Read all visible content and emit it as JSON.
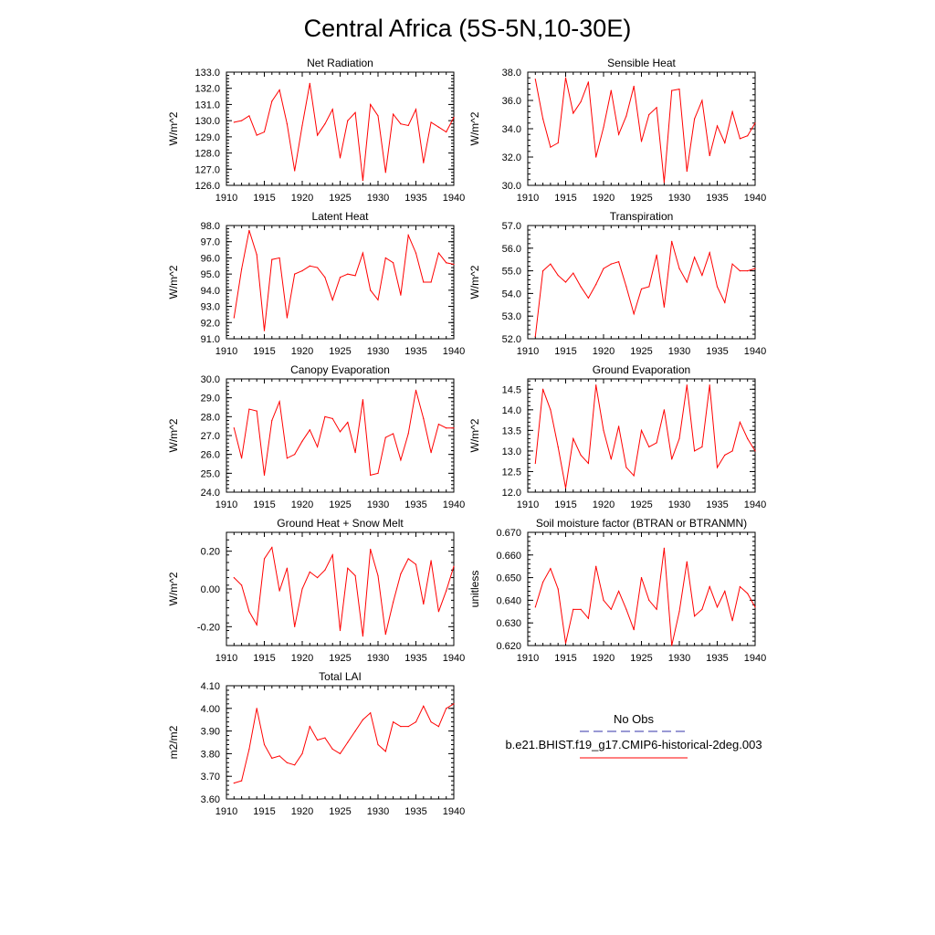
{
  "figure": {
    "title": "Central Africa (5S-5N,10-30E)"
  },
  "legend": {
    "obs_label": "No Obs",
    "obs_color": "#3333aa",
    "model_label": "b.e21.BHIST.f19_g17.CMIP6-historical-2deg.003",
    "model_color": "#ff0000"
  },
  "chart_data": [
    {
      "type": "line",
      "title": "Net Radiation",
      "ylabel": "W/m^2",
      "xlim": [
        1910,
        1940
      ],
      "xticks": [
        "1910",
        "1915",
        "1920",
        "1925",
        "1930",
        "1935",
        "1940"
      ],
      "ylim": [
        126.0,
        133.0
      ],
      "yticks": [
        "126.0",
        "127.0",
        "128.0",
        "129.0",
        "130.0",
        "131.0",
        "132.0",
        "133.0"
      ],
      "x": [
        1911,
        1912,
        1913,
        1914,
        1915,
        1916,
        1917,
        1918,
        1919,
        1920,
        1921,
        1922,
        1923,
        1924,
        1925,
        1926,
        1927,
        1928,
        1929,
        1930,
        1931,
        1932,
        1933,
        1934,
        1935,
        1936,
        1937,
        1938,
        1939,
        1940
      ],
      "series": [
        {
          "values": [
            129.9,
            130.0,
            130.3,
            129.1,
            129.3,
            131.2,
            131.9,
            129.8,
            126.9,
            129.7,
            132.3,
            129.1,
            129.8,
            130.7,
            127.7,
            130.0,
            130.5,
            126.3,
            131.0,
            130.3,
            126.8,
            130.4,
            129.8,
            129.7,
            130.7,
            127.4,
            129.9,
            129.6,
            129.3,
            130.2
          ]
        }
      ]
    },
    {
      "type": "line",
      "title": "Sensible Heat",
      "ylabel": "W/m^2",
      "xlim": [
        1910,
        1940
      ],
      "xticks": [
        "1910",
        "1915",
        "1920",
        "1925",
        "1930",
        "1935",
        "1940"
      ],
      "ylim": [
        30.0,
        38.0
      ],
      "yticks": [
        "30.0",
        "32.0",
        "34.0",
        "36.0",
        "38.0"
      ],
      "x": [
        1911,
        1912,
        1913,
        1914,
        1915,
        1916,
        1917,
        1918,
        1919,
        1920,
        1921,
        1922,
        1923,
        1924,
        1925,
        1926,
        1927,
        1928,
        1929,
        1930,
        1931,
        1932,
        1933,
        1934,
        1935,
        1936,
        1937,
        1938,
        1939,
        1940
      ],
      "series": [
        {
          "values": [
            37.5,
            34.7,
            32.7,
            33.0,
            37.6,
            35.1,
            35.9,
            37.3,
            32.0,
            34.1,
            36.7,
            33.6,
            34.9,
            37.0,
            33.1,
            35.0,
            35.5,
            30.2,
            36.7,
            36.8,
            31.0,
            34.7,
            36.0,
            32.1,
            34.2,
            33.0,
            35.2,
            33.3,
            33.5,
            34.4
          ]
        }
      ]
    },
    {
      "type": "line",
      "title": "Latent Heat",
      "ylabel": "W/m^2",
      "xlim": [
        1910,
        1940
      ],
      "xticks": [
        "1910",
        "1915",
        "1920",
        "1925",
        "1930",
        "1935",
        "1940"
      ],
      "ylim": [
        91.0,
        98.0
      ],
      "yticks": [
        "91.0",
        "92.0",
        "93.0",
        "94.0",
        "95.0",
        "96.0",
        "97.0",
        "98.0"
      ],
      "x": [
        1911,
        1912,
        1913,
        1914,
        1915,
        1916,
        1917,
        1918,
        1919,
        1920,
        1921,
        1922,
        1923,
        1924,
        1925,
        1926,
        1927,
        1928,
        1929,
        1930,
        1931,
        1932,
        1933,
        1934,
        1935,
        1936,
        1937,
        1938,
        1939,
        1940
      ],
      "series": [
        {
          "values": [
            92.3,
            95.3,
            97.7,
            96.2,
            91.5,
            95.9,
            96.0,
            92.3,
            95.0,
            95.2,
            95.5,
            95.4,
            94.8,
            93.4,
            94.8,
            95.0,
            94.9,
            96.3,
            94.0,
            93.4,
            96.0,
            95.7,
            93.7,
            97.4,
            96.3,
            94.5,
            94.5,
            96.3,
            95.7,
            95.6
          ]
        }
      ]
    },
    {
      "type": "line",
      "title": "Transpiration",
      "ylabel": "W/m^2",
      "xlim": [
        1910,
        1940
      ],
      "xticks": [
        "1910",
        "1915",
        "1920",
        "1925",
        "1930",
        "1935",
        "1940"
      ],
      "ylim": [
        52.0,
        57.0
      ],
      "yticks": [
        "52.0",
        "53.0",
        "54.0",
        "55.0",
        "56.0",
        "57.0"
      ],
      "x": [
        1911,
        1912,
        1913,
        1914,
        1915,
        1916,
        1917,
        1918,
        1919,
        1920,
        1921,
        1922,
        1923,
        1924,
        1925,
        1926,
        1927,
        1928,
        1929,
        1930,
        1931,
        1932,
        1933,
        1934,
        1935,
        1936,
        1937,
        1938,
        1939,
        1940
      ],
      "series": [
        {
          "values": [
            52.1,
            55.0,
            55.3,
            54.8,
            54.5,
            54.9,
            54.3,
            53.8,
            54.4,
            55.1,
            55.3,
            55.4,
            54.3,
            53.1,
            54.2,
            54.3,
            55.7,
            53.4,
            56.3,
            55.1,
            54.5,
            55.6,
            54.8,
            55.8,
            54.3,
            53.6,
            55.3,
            55.0,
            55.0,
            55.1
          ]
        }
      ]
    },
    {
      "type": "line",
      "title": "Canopy Evaporation",
      "ylabel": "W/m^2",
      "xlim": [
        1910,
        1940
      ],
      "xticks": [
        "1910",
        "1915",
        "1920",
        "1925",
        "1930",
        "1935",
        "1940"
      ],
      "ylim": [
        24.0,
        30.0
      ],
      "yticks": [
        "24.0",
        "25.0",
        "26.0",
        "27.0",
        "28.0",
        "29.0",
        "30.0"
      ],
      "x": [
        1911,
        1912,
        1913,
        1914,
        1915,
        1916,
        1917,
        1918,
        1919,
        1920,
        1921,
        1922,
        1923,
        1924,
        1925,
        1926,
        1927,
        1928,
        1929,
        1930,
        1931,
        1932,
        1933,
        1934,
        1935,
        1936,
        1937,
        1938,
        1939,
        1940
      ],
      "series": [
        {
          "values": [
            27.4,
            25.8,
            28.4,
            28.3,
            24.9,
            27.8,
            28.8,
            25.8,
            26.0,
            26.7,
            27.3,
            26.4,
            28.0,
            27.9,
            27.2,
            27.7,
            26.1,
            28.9,
            24.9,
            25.0,
            26.9,
            27.1,
            25.7,
            27.1,
            29.4,
            27.9,
            26.1,
            27.6,
            27.4,
            27.4
          ]
        }
      ]
    },
    {
      "type": "line",
      "title": "Ground Evaporation",
      "ylabel": "W/m^2",
      "xlim": [
        1910,
        1940
      ],
      "xticks": [
        "1910",
        "1915",
        "1920",
        "1925",
        "1930",
        "1935",
        "1940"
      ],
      "ylim": [
        12.0,
        14.75
      ],
      "yticks": [
        "12.0",
        "12.5",
        "13.0",
        "13.5",
        "14.0",
        "14.5"
      ],
      "x": [
        1911,
        1912,
        1913,
        1914,
        1915,
        1916,
        1917,
        1918,
        1919,
        1920,
        1921,
        1922,
        1923,
        1924,
        1925,
        1926,
        1927,
        1928,
        1929,
        1930,
        1931,
        1932,
        1933,
        1934,
        1935,
        1936,
        1937,
        1938,
        1939,
        1940
      ],
      "series": [
        {
          "values": [
            12.7,
            14.5,
            14.0,
            13.1,
            12.1,
            13.3,
            12.9,
            12.7,
            14.6,
            13.5,
            12.8,
            13.6,
            12.6,
            12.4,
            13.5,
            13.1,
            13.2,
            14.0,
            12.8,
            13.3,
            14.6,
            13.0,
            13.1,
            14.6,
            12.6,
            12.9,
            13.0,
            13.7,
            13.3,
            13.0
          ]
        }
      ]
    },
    {
      "type": "line",
      "title": "Ground Heat + Snow Melt",
      "ylabel": "W/m^2",
      "xlim": [
        1910,
        1940
      ],
      "xticks": [
        "1910",
        "1915",
        "1920",
        "1925",
        "1930",
        "1935",
        "1940"
      ],
      "ylim": [
        -0.3,
        0.3
      ],
      "yticks": [
        "-0.20",
        "0.00",
        "0.20"
      ],
      "ytickvals": [
        -0.2,
        0.0,
        0.2
      ],
      "x": [
        1911,
        1912,
        1913,
        1914,
        1915,
        1916,
        1917,
        1918,
        1919,
        1920,
        1921,
        1922,
        1923,
        1924,
        1925,
        1926,
        1927,
        1928,
        1929,
        1930,
        1931,
        1932,
        1933,
        1934,
        1935,
        1936,
        1937,
        1938,
        1939,
        1940
      ],
      "series": [
        {
          "values": [
            0.06,
            0.02,
            -0.12,
            -0.19,
            0.16,
            0.22,
            -0.01,
            0.11,
            -0.2,
            0.0,
            0.09,
            0.06,
            0.1,
            0.18,
            -0.22,
            0.11,
            0.07,
            -0.25,
            0.21,
            0.07,
            -0.24,
            -0.07,
            0.08,
            0.16,
            0.13,
            -0.08,
            0.15,
            -0.12,
            -0.01,
            0.12
          ]
        }
      ]
    },
    {
      "type": "line",
      "title": "Soil moisture factor (BTRAN or BTRANMN)",
      "ylabel": "unitless",
      "xlim": [
        1910,
        1940
      ],
      "xticks": [
        "1910",
        "1915",
        "1920",
        "1925",
        "1930",
        "1935",
        "1940"
      ],
      "ylim": [
        0.62,
        0.67
      ],
      "yticks": [
        "0.620",
        "0.630",
        "0.640",
        "0.650",
        "0.660",
        "0.670"
      ],
      "x": [
        1911,
        1912,
        1913,
        1914,
        1915,
        1916,
        1917,
        1918,
        1919,
        1920,
        1921,
        1922,
        1923,
        1924,
        1925,
        1926,
        1927,
        1928,
        1929,
        1930,
        1931,
        1932,
        1933,
        1934,
        1935,
        1936,
        1937,
        1938,
        1939,
        1940
      ],
      "series": [
        {
          "values": [
            0.637,
            0.648,
            0.654,
            0.645,
            0.621,
            0.636,
            0.636,
            0.632,
            0.655,
            0.64,
            0.636,
            0.644,
            0.636,
            0.627,
            0.65,
            0.64,
            0.636,
            0.663,
            0.62,
            0.635,
            0.657,
            0.633,
            0.636,
            0.646,
            0.637,
            0.644,
            0.631,
            0.646,
            0.643,
            0.637
          ]
        }
      ]
    },
    {
      "type": "line",
      "title": "Total LAI",
      "ylabel": "m2/m2",
      "xlim": [
        1910,
        1940
      ],
      "xticks": [
        "1910",
        "1915",
        "1920",
        "1925",
        "1930",
        "1935",
        "1940"
      ],
      "ylim": [
        3.6,
        4.1
      ],
      "yticks": [
        "3.60",
        "3.70",
        "3.80",
        "3.90",
        "4.00",
        "4.10"
      ],
      "x": [
        1911,
        1912,
        1913,
        1914,
        1915,
        1916,
        1917,
        1918,
        1919,
        1920,
        1921,
        1922,
        1923,
        1924,
        1925,
        1926,
        1927,
        1928,
        1929,
        1930,
        1931,
        1932,
        1933,
        1934,
        1935,
        1936,
        1937,
        1938,
        1939,
        1940
      ],
      "series": [
        {
          "values": [
            3.67,
            3.68,
            3.82,
            4.0,
            3.84,
            3.78,
            3.79,
            3.76,
            3.75,
            3.8,
            3.92,
            3.86,
            3.87,
            3.82,
            3.8,
            3.85,
            3.9,
            3.95,
            3.98,
            3.84,
            3.81,
            3.94,
            3.92,
            3.92,
            3.94,
            4.01,
            3.94,
            3.92,
            4.0,
            4.02
          ]
        }
      ]
    }
  ]
}
